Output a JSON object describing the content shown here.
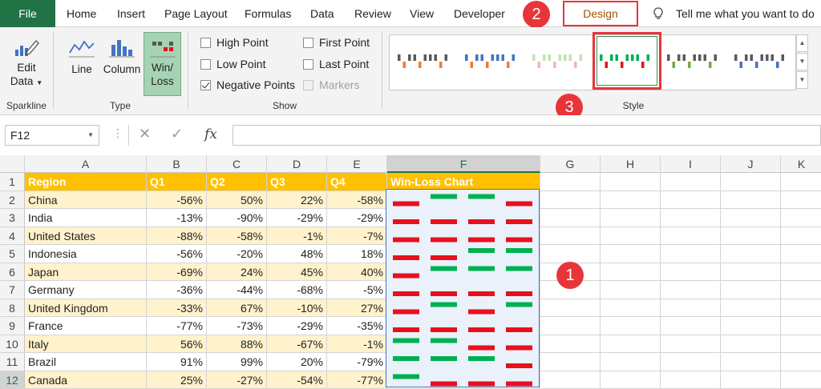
{
  "tabs": [
    "File",
    "Home",
    "Insert",
    "Page Layout",
    "Formulas",
    "Data",
    "Review",
    "View",
    "Developer",
    "Design"
  ],
  "tell_me": "Tell me what you want to do",
  "ribbon": {
    "edit_data": [
      "Edit",
      "Data"
    ],
    "type_buttons": [
      "Line",
      "Column",
      "Win/",
      "Loss"
    ],
    "show": {
      "high_point": "High Point",
      "low_point": "Low Point",
      "negative_points": "Negative Points",
      "first_point": "First Point",
      "last_point": "Last Point",
      "markers": "Markers"
    },
    "groups": [
      "Sparkline",
      "Type",
      "Show",
      "Style"
    ]
  },
  "badges": [
    "1",
    "2",
    "3"
  ],
  "colors": {
    "accent": "#217346",
    "win": "#00b050",
    "loss": "#e8101e",
    "header": "#ffc000",
    "band": "#fff2cc"
  },
  "icons": [
    "edit-data-icon",
    "line-chart-icon",
    "column-chart-icon",
    "win-loss-icon",
    "lightbulb-icon",
    "cancel-icon",
    "check-icon",
    "fx-icon",
    "dropdown-icon",
    "scroll-up-icon",
    "scroll-down-icon",
    "more-icon"
  ],
  "formula_bar": {
    "name_box": "F12",
    "fx": "fx"
  },
  "columns": [
    "A",
    "B",
    "C",
    "D",
    "E",
    "F",
    "G",
    "H",
    "I",
    "J",
    "K"
  ],
  "row_numbers": [
    "1",
    "2",
    "3",
    "4",
    "5",
    "6",
    "7",
    "8",
    "9",
    "10",
    "11",
    "12"
  ],
  "table": {
    "headers": [
      "Region",
      "Q1",
      "Q2",
      "Q3",
      "Q4",
      "Win-Loss Chart"
    ],
    "rows": [
      {
        "region": "China",
        "q": [
          "-56%",
          "50%",
          "22%",
          "-58%"
        ],
        "v": [
          -56,
          50,
          22,
          -58
        ]
      },
      {
        "region": "India",
        "q": [
          "-13%",
          "-90%",
          "-29%",
          "-29%"
        ],
        "v": [
          -13,
          -90,
          -29,
          -29
        ]
      },
      {
        "region": "United States",
        "q": [
          "-88%",
          "-58%",
          "-1%",
          "-7%"
        ],
        "v": [
          -88,
          -58,
          -1,
          -7
        ]
      },
      {
        "region": "Indonesia",
        "q": [
          "-56%",
          "-20%",
          "48%",
          "18%"
        ],
        "v": [
          -56,
          -20,
          48,
          18
        ]
      },
      {
        "region": "Japan",
        "q": [
          "-69%",
          "24%",
          "45%",
          "40%"
        ],
        "v": [
          -69,
          24,
          45,
          40
        ]
      },
      {
        "region": "Germany",
        "q": [
          "-36%",
          "-44%",
          "-68%",
          "-5%"
        ],
        "v": [
          -36,
          -44,
          -68,
          -5
        ]
      },
      {
        "region": "United Kingdom",
        "q": [
          "-33%",
          "67%",
          "-10%",
          "27%"
        ],
        "v": [
          -33,
          67,
          -10,
          27
        ]
      },
      {
        "region": "France",
        "q": [
          "-77%",
          "-73%",
          "-29%",
          "-35%"
        ],
        "v": [
          -77,
          -73,
          -29,
          -35
        ]
      },
      {
        "region": "Italy",
        "q": [
          "56%",
          "88%",
          "-67%",
          "-1%"
        ],
        "v": [
          56,
          88,
          -67,
          -1
        ]
      },
      {
        "region": "Brazil",
        "q": [
          "91%",
          "99%",
          "20%",
          "-79%"
        ],
        "v": [
          91,
          99,
          20,
          -79
        ]
      },
      {
        "region": "Canada",
        "q": [
          "25%",
          "-27%",
          "-54%",
          "-77%"
        ],
        "v": [
          25,
          -27,
          -54,
          -77
        ]
      }
    ]
  }
}
